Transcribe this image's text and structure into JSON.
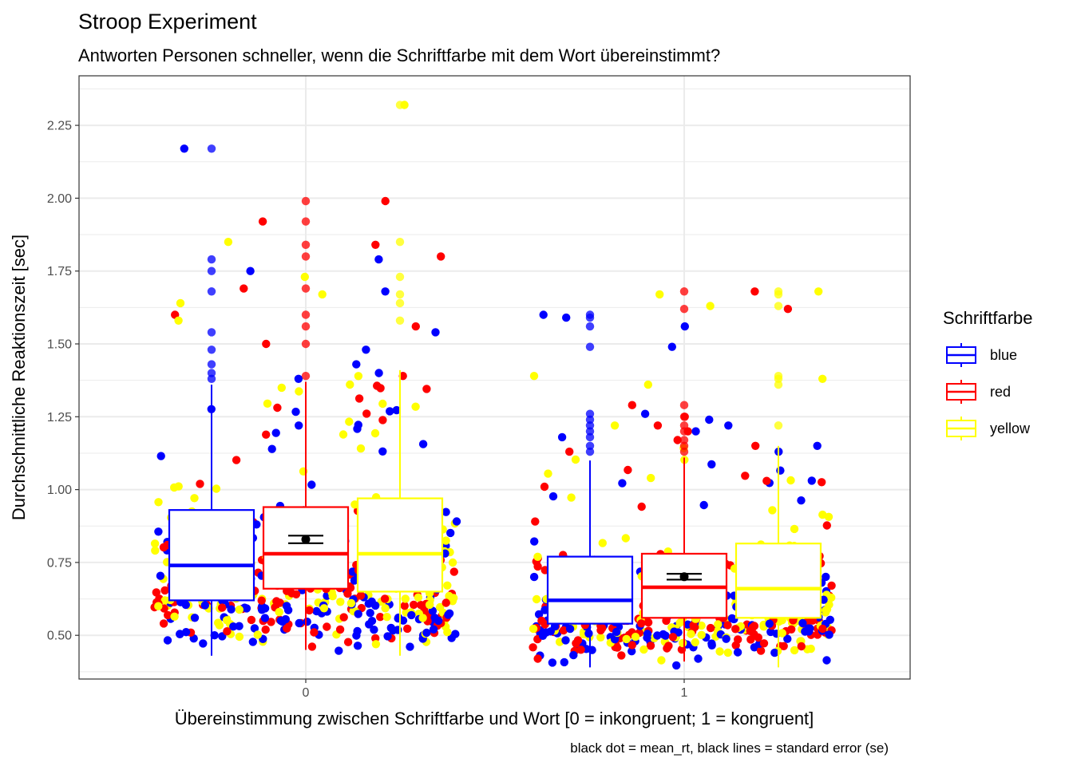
{
  "chart_data": {
    "type": "box",
    "title": "Stroop Experiment",
    "subtitle": "Antworten Personen schneller, wenn die Schriftfarbe mit dem Wort übereinstimmt?",
    "xlabel": "Übereinstimmung zwischen Schriftfarbe und Wort [0 = inkongruent; 1 = kongruent]",
    "ylabel": "Durchschnittliche Reaktionszeit [sec]",
    "caption": "black dot = mean_rt, black lines = standard error (se)",
    "categories": [
      "0",
      "1"
    ],
    "ylim": [
      0.35,
      2.42
    ],
    "yticks": [
      0.5,
      0.75,
      1.0,
      1.25,
      1.5,
      1.75,
      2.0,
      2.25
    ],
    "ytick_labels": [
      "0.50",
      "0.75",
      "1.00",
      "1.25",
      "1.50",
      "1.75",
      "2.00",
      "2.25"
    ],
    "grid": true,
    "legend": {
      "title": "Schriftfarbe",
      "position": "right",
      "entries": [
        {
          "name": "blue",
          "color": "#0000ff"
        },
        {
          "name": "red",
          "color": "#ff0000"
        },
        {
          "name": "yellow",
          "color": "#ffff00"
        }
      ]
    },
    "series": [
      {
        "name": "blue",
        "color": "#0000ff",
        "boxes": [
          {
            "category": "0",
            "min": 0.43,
            "q1": 0.62,
            "median": 0.74,
            "q3": 0.93,
            "max": 1.36,
            "outliers": [
              1.38,
              1.4,
              1.43,
              1.48,
              1.54,
              1.68,
              1.75,
              1.79,
              2.17
            ]
          },
          {
            "category": "1",
            "min": 0.39,
            "q1": 0.54,
            "median": 0.62,
            "q3": 0.77,
            "max": 1.1,
            "outliers": [
              1.13,
              1.15,
              1.18,
              1.2,
              1.22,
              1.24,
              1.26,
              1.49,
              1.56,
              1.59,
              1.6
            ]
          }
        ]
      },
      {
        "name": "red",
        "color": "#ff0000",
        "boxes": [
          {
            "category": "0",
            "min": 0.45,
            "q1": 0.66,
            "median": 0.78,
            "q3": 0.94,
            "max": 1.37,
            "outliers": [
              1.39,
              1.5,
              1.56,
              1.6,
              1.69,
              1.8,
              1.84,
              1.92,
              1.99
            ]
          },
          {
            "category": "1",
            "min": 0.41,
            "q1": 0.56,
            "median": 0.665,
            "q3": 0.78,
            "max": 1.11,
            "outliers": [
              1.13,
              1.15,
              1.17,
              1.2,
              1.22,
              1.25,
              1.29,
              1.62,
              1.68
            ]
          }
        ]
      },
      {
        "name": "yellow",
        "color": "#ffff00",
        "boxes": [
          {
            "category": "0",
            "min": 0.43,
            "q1": 0.65,
            "median": 0.78,
            "q3": 0.97,
            "max": 1.41,
            "outliers": [
              1.58,
              1.64,
              1.67,
              1.73,
              1.85,
              2.32
            ]
          },
          {
            "category": "1",
            "min": 0.39,
            "q1": 0.56,
            "median": 0.66,
            "q3": 0.815,
            "max": 1.15,
            "outliers": [
              1.22,
              1.36,
              1.38,
              1.39,
              1.63,
              1.67,
              1.68
            ]
          }
        ]
      }
    ],
    "mean_se": [
      {
        "category": "0",
        "mean_rt": 0.829,
        "se": 0.013
      },
      {
        "category": "1",
        "mean_rt": 0.701,
        "se": 0.01
      }
    ]
  }
}
